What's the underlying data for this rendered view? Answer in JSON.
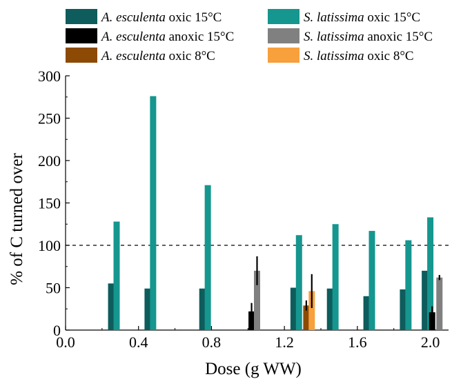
{
  "chart_data": {
    "type": "bar",
    "title": "",
    "xlabel": "Dose (g WW)",
    "ylabel": "% of C turned over",
    "xlim": [
      0.0,
      2.1
    ],
    "ylim": [
      0,
      300
    ],
    "x_ticks": [
      "0.0",
      "0.4",
      "0.8",
      "1.2",
      "1.6",
      "2.0"
    ],
    "y_ticks": [
      "0",
      "50",
      "100",
      "150",
      "200",
      "250",
      "300"
    ],
    "reference_line": {
      "y": 100,
      "style": "dashed"
    },
    "legend": {
      "placement": "top",
      "entries": [
        {
          "species": "A. esculenta",
          "condition": "oxic 15°C",
          "series": "ae_oxic15"
        },
        {
          "species": "S. latissima",
          "condition": "oxic 15°C",
          "series": "sl_oxic15"
        },
        {
          "species": "A. esculenta",
          "condition": "anoxic 15°C",
          "series": "ae_anoxic15"
        },
        {
          "species": "S. latissima",
          "condition": "anoxic 15°C",
          "series": "sl_anoxic15"
        },
        {
          "species": "A. esculenta",
          "condition": "oxic 8°C",
          "series": "ae_oxic8"
        },
        {
          "species": "S. latissima",
          "condition": "oxic 8°C",
          "series": "sl_oxic8"
        }
      ]
    },
    "series": [
      {
        "id": "ae_oxic15",
        "color": "#0e5c5c",
        "points": [
          {
            "x": 0.25,
            "y": 55
          },
          {
            "x": 0.45,
            "y": 49
          },
          {
            "x": 0.75,
            "y": 49
          },
          {
            "x": 1.25,
            "y": 50
          },
          {
            "x": 1.45,
            "y": 49
          },
          {
            "x": 1.65,
            "y": 40
          },
          {
            "x": 1.85,
            "y": 48
          },
          {
            "x": 1.97,
            "y": 70
          }
        ]
      },
      {
        "id": "sl_oxic15",
        "color": "#15968f",
        "points": [
          {
            "x": 0.28,
            "y": 128
          },
          {
            "x": 0.48,
            "y": 276
          },
          {
            "x": 0.78,
            "y": 171
          },
          {
            "x": 1.28,
            "y": 112
          },
          {
            "x": 1.48,
            "y": 125
          },
          {
            "x": 1.68,
            "y": 117
          },
          {
            "x": 1.88,
            "y": 106
          },
          {
            "x": 2.0,
            "y": 133
          }
        ]
      },
      {
        "id": "ae_anoxic15",
        "color": "#000000",
        "points": [
          {
            "x": 1.02,
            "y": 22,
            "err": 10
          },
          {
            "x": 2.01,
            "y": 21,
            "err": 7
          }
        ]
      },
      {
        "id": "sl_anoxic15",
        "color": "#808080",
        "points": [
          {
            "x": 1.05,
            "y": 70,
            "err": 17
          },
          {
            "x": 2.05,
            "y": 62,
            "err": 3
          }
        ]
      },
      {
        "id": "ae_oxic8",
        "color": "#8c4a05",
        "points": [
          {
            "x": 1.32,
            "y": 29,
            "err": 6
          }
        ]
      },
      {
        "id": "sl_oxic8",
        "color": "#f7a03c",
        "points": [
          {
            "x": 1.35,
            "y": 46,
            "err": 20
          }
        ]
      }
    ]
  }
}
